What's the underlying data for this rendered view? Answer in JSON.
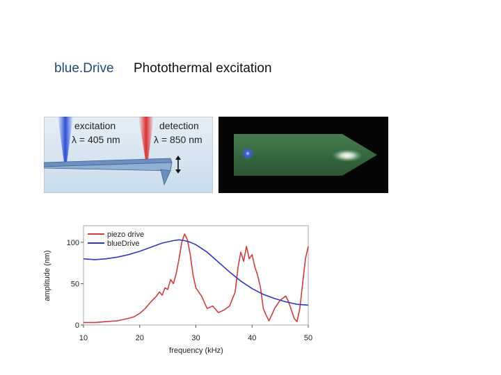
{
  "header": {
    "product": "blue.Drive",
    "subtitle": "Photothermal excitation"
  },
  "diagram": {
    "excitation_label": "excitation",
    "excitation_wavelength": "λ = 405 nm",
    "detection_label": "detection",
    "detection_wavelength": "λ = 850 nm",
    "colors": {
      "excitation": "#2b4fd8",
      "detection": "#e03030",
      "cantilever": "#5f86b5",
      "background": "#dde9f2"
    }
  },
  "micrograph": {
    "colors": {
      "background": "#050505",
      "cantilever": "#3e7a4a",
      "spot_blue": "#3a5cff",
      "spot_white": "#ffffff"
    }
  },
  "chart_data": {
    "type": "line",
    "xlabel": "frequency (kHz)",
    "ylabel": "amplitude (nm)",
    "xlim": [
      10,
      50
    ],
    "ylim": [
      0,
      120
    ],
    "xticks": [
      10,
      20,
      30,
      40,
      50
    ],
    "yticks": [
      0,
      50,
      100
    ],
    "legend_position": "top-left",
    "series": [
      {
        "name": "piezo drive",
        "color": "#d63a3a",
        "x": [
          10,
          12,
          14,
          16,
          18,
          19,
          20,
          21,
          22,
          23,
          23.5,
          24,
          24.5,
          25,
          25.5,
          26,
          26.5,
          27,
          27.5,
          28,
          28.5,
          29,
          29.5,
          30,
          31,
          32,
          33,
          34,
          35,
          36,
          37,
          37.5,
          38,
          38.5,
          39,
          39.5,
          40,
          40.5,
          41,
          41.5,
          42,
          42.5,
          43,
          43.5,
          44,
          45,
          46,
          46.5,
          47,
          47.5,
          48,
          48.5,
          49,
          49.5,
          50
        ],
        "y": [
          3,
          3,
          4,
          5,
          8,
          10,
          14,
          20,
          28,
          35,
          40,
          36,
          45,
          43,
          55,
          50,
          62,
          80,
          100,
          110,
          103,
          85,
          60,
          45,
          35,
          20,
          23,
          15,
          18,
          23,
          40,
          70,
          88,
          77,
          95,
          80,
          85,
          70,
          60,
          45,
          20,
          12,
          5,
          12,
          20,
          30,
          35,
          28,
          18,
          8,
          4,
          20,
          50,
          80,
          95
        ]
      },
      {
        "name": "blueDrive",
        "color": "#2f35c8",
        "x": [
          10,
          12,
          14,
          16,
          18,
          20,
          22,
          24,
          26,
          27,
          28,
          29,
          30,
          32,
          34,
          36,
          38,
          40,
          42,
          44,
          46,
          48,
          50
        ],
        "y": [
          80,
          79,
          80,
          82,
          85,
          89,
          94,
          99,
          102,
          103,
          102,
          100,
          97,
          88,
          76,
          64,
          53,
          44,
          37,
          32,
          28,
          25,
          24
        ]
      }
    ]
  }
}
